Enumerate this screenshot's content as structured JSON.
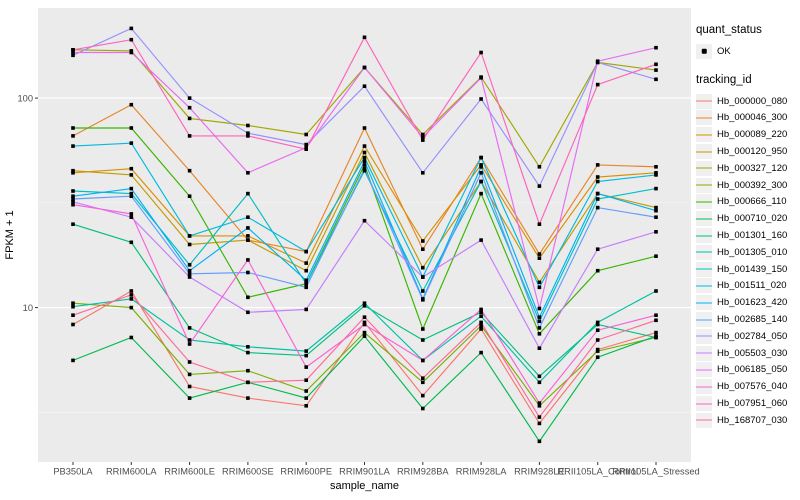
{
  "figure": {
    "bg": "#FFFFFF",
    "panel_bg": "#EBEBEB",
    "grid_major_color": "#FFFFFF",
    "grid_minor_color": "#F5F5F5",
    "tick_mark_color": "#333333",
    "tick_label_color": "#4D4D4D",
    "axis_title_color": "#000000",
    "point_color": "#000000"
  },
  "chart_data": {
    "type": "line",
    "title": "",
    "xlabel": "sample_name",
    "ylabel": "FPKM + 1",
    "y_scale": "log10",
    "y_major_ticks": [
      10,
      100
    ],
    "y_major_tick_labels": [
      "10",
      "100"
    ],
    "y_minor_ticks": [
      3.162,
      31.62
    ],
    "ylim_log10": [
      0.263,
      2.43
    ],
    "grid": true,
    "legend_position": "right",
    "point_shape": "filled-square",
    "categories": [
      "PB350LA",
      "RRIM600LA",
      "RRIM600LE",
      "RRIM600SE",
      "RRIM600PE",
      "RRIM901LA",
      "RRIM928BA",
      "RRIM928LA",
      "RRIM928LE",
      "RRII105LA_Control",
      "RRII105LA_Stressed"
    ],
    "legend": {
      "quant_title": "quant_status",
      "quant_items": [
        {
          "label": "OK",
          "shape": "point",
          "color": "#000000"
        }
      ],
      "series_title": "tracking_id"
    },
    "series": [
      {
        "name": "Hb_000000_080",
        "color": "#F8766D",
        "values": [
          8.3,
          12,
          4.2,
          3.7,
          3.4,
          8.5,
          3.8,
          7.9,
          2.8,
          6.3,
          7.6
        ]
      },
      {
        "name": "Hb_000046_300",
        "color": "#E88526",
        "values": [
          66,
          93,
          45,
          21,
          18.5,
          72,
          19,
          52,
          18,
          48,
          47
        ]
      },
      {
        "name": "Hb_000089_220",
        "color": "#D89000",
        "values": [
          44,
          46,
          22,
          22,
          16.3,
          59,
          20.8,
          48,
          17.2,
          42,
          44
        ]
      },
      {
        "name": "Hb_000120_950",
        "color": "#C09B00",
        "values": [
          45,
          43,
          20,
          21,
          15,
          55,
          15.5,
          40,
          13.2,
          35,
          30
        ]
      },
      {
        "name": "Hb_000327_120",
        "color": "#A3A500",
        "values": [
          170,
          168,
          80,
          74,
          67,
          140,
          67,
          126,
          47,
          148,
          136
        ]
      },
      {
        "name": "Hb_000392_300",
        "color": "#7CAE00",
        "values": [
          10.5,
          10,
          4.8,
          5.0,
          4.0,
          7.6,
          4.4,
          8.2,
          3.4,
          6.2,
          7.2
        ]
      },
      {
        "name": "Hb_000666_110",
        "color": "#39B600",
        "values": [
          72,
          72,
          34,
          11.2,
          13,
          48,
          7.9,
          35,
          7.5,
          15,
          17.6
        ]
      },
      {
        "name": "Hb_000710_020",
        "color": "#00BB4E",
        "values": [
          5.6,
          7.2,
          3.7,
          4.4,
          3.7,
          7.3,
          3.3,
          6.1,
          2.3,
          5.8,
          7.3
        ]
      },
      {
        "name": "Hb_001301_160",
        "color": "#00BF7D",
        "values": [
          25,
          20.5,
          8.0,
          6.1,
          5.9,
          10.2,
          7.0,
          9.5,
          4.7,
          8.3,
          7.2
        ]
      },
      {
        "name": "Hb_001305_010",
        "color": "#00C1A3",
        "values": [
          10.1,
          11,
          7.0,
          6.5,
          6.2,
          10.5,
          5.6,
          9.1,
          4.4,
          8.5,
          12
        ]
      },
      {
        "name": "Hb_001439_150",
        "color": "#00BFC4",
        "values": [
          36,
          35,
          16,
          35,
          13,
          45,
          12,
          40,
          8.6,
          33,
          37
        ]
      },
      {
        "name": "Hb_001511_020",
        "color": "#00BAE0",
        "values": [
          59,
          61,
          22,
          27,
          18.5,
          52,
          14,
          52,
          12.5,
          40,
          43
        ]
      },
      {
        "name": "Hb_001623_420",
        "color": "#00B0F6",
        "values": [
          34,
          37,
          15,
          24,
          13.5,
          50,
          11,
          47,
          9.0,
          35,
          29
        ]
      },
      {
        "name": "Hb_002685_140",
        "color": "#619CFF",
        "values": [
          33,
          34,
          14.5,
          14.7,
          12.5,
          46,
          10.9,
          44,
          8.0,
          30,
          27
        ]
      },
      {
        "name": "Hb_002784_050",
        "color": "#9590FF",
        "values": [
          160,
          215,
          100,
          68,
          60,
          114,
          44,
          99,
          38,
          148,
          123
        ]
      },
      {
        "name": "Hb_005503_030",
        "color": "#C77CFF",
        "values": [
          32,
          27,
          14,
          9.5,
          9.8,
          26,
          14,
          21,
          6.4,
          19,
          23
        ]
      },
      {
        "name": "Hb_006185_050",
        "color": "#E76BF3",
        "values": [
          165,
          165,
          90,
          44,
          58,
          140,
          65,
          125,
          9.9,
          150,
          174
        ]
      },
      {
        "name": "Hb_007576_040",
        "color": "#FA62DB",
        "values": [
          31,
          28,
          6.7,
          16.9,
          5.2,
          8.3,
          5.6,
          9.8,
          3.5,
          7.8,
          9.2
        ]
      },
      {
        "name": "Hb_007951_060",
        "color": "#FF62BC",
        "values": [
          170,
          190,
          66,
          66,
          57,
          195,
          63,
          165,
          25,
          116,
          145
        ]
      },
      {
        "name": "Hb_168707_030",
        "color": "#FF6A98",
        "values": [
          9.2,
          11.5,
          5.5,
          4.4,
          4.5,
          9.0,
          4.6,
          8.5,
          3.0,
          7.0,
          8.7
        ]
      }
    ]
  }
}
